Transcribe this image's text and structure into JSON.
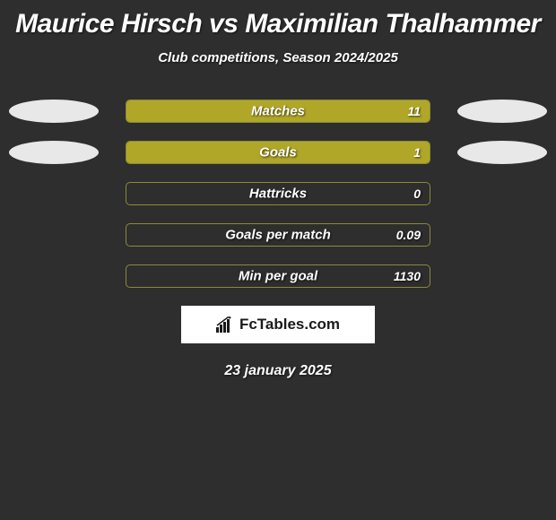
{
  "title": "Maurice Hirsch vs Maximilian Thalhammer",
  "subtitle": "Club competitions, Season 2024/2025",
  "date": "23 january 2025",
  "logo_text": "FcTables.com",
  "colors": {
    "background": "#2e2e2e",
    "bar_fill": "#b0a728",
    "bar_border": "#8a8a3a",
    "oval": "#e8e8e8",
    "text": "#ffffff",
    "logo_bg": "#ffffff",
    "logo_text": "#1a1a1a"
  },
  "oval_rows": [
    0,
    1
  ],
  "stats": [
    {
      "label": "Matches",
      "value": "11",
      "fill_pct": 100
    },
    {
      "label": "Goals",
      "value": "1",
      "fill_pct": 100
    },
    {
      "label": "Hattricks",
      "value": "0",
      "fill_pct": 0
    },
    {
      "label": "Goals per match",
      "value": "0.09",
      "fill_pct": 0
    },
    {
      "label": "Min per goal",
      "value": "1130",
      "fill_pct": 0
    }
  ]
}
